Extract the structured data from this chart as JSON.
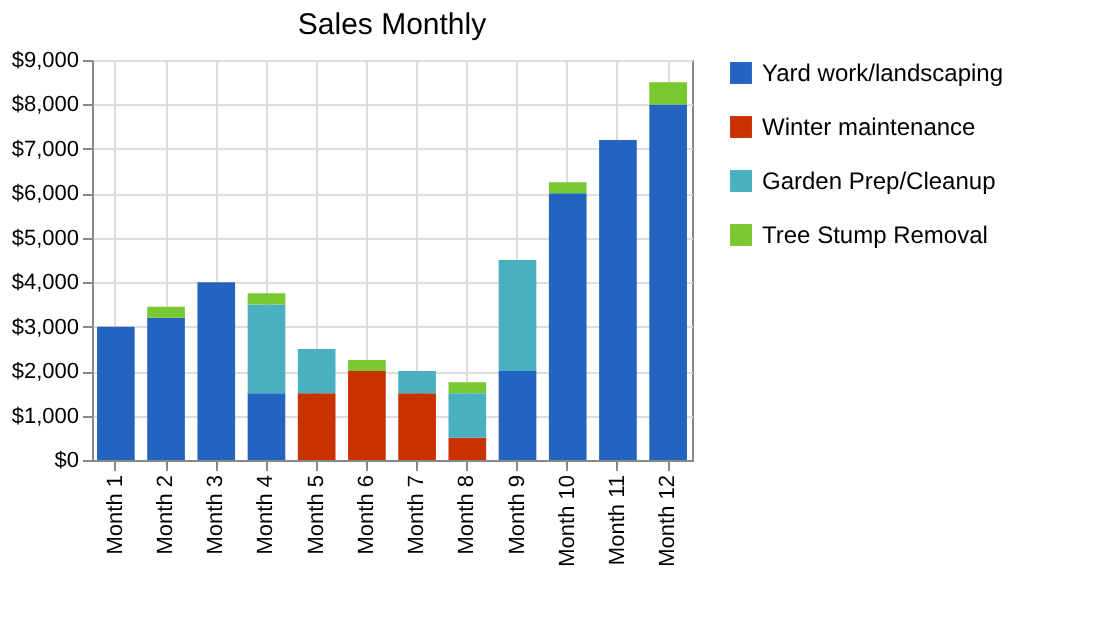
{
  "chart_data": {
    "type": "bar",
    "title": "Sales Monthly",
    "stacked": true,
    "categories": [
      "Month 1",
      "Month 2",
      "Month 3",
      "Month 4",
      "Month 5",
      "Month 6",
      "Month 7",
      "Month 8",
      "Month 9",
      "Month 10",
      "Month 11",
      "Month 12"
    ],
    "series": [
      {
        "name": "Yard work/landscaping",
        "color": "#2563c0",
        "values": [
          3000,
          3200,
          4000,
          1500,
          0,
          0,
          0,
          0,
          2000,
          6000,
          7200,
          8000
        ]
      },
      {
        "name": "Winter maintenance",
        "color": "#c83200",
        "values": [
          0,
          0,
          0,
          0,
          1500,
          2000,
          1500,
          500,
          0,
          0,
          0,
          0
        ]
      },
      {
        "name": "Garden Prep/Cleanup",
        "color": "#48b0c0",
        "values": [
          0,
          0,
          0,
          2000,
          1000,
          0,
          500,
          1000,
          2500,
          0,
          0,
          0
        ]
      },
      {
        "name": "Tree Stump Removal",
        "color": "#78c832",
        "values": [
          0,
          250,
          0,
          250,
          0,
          250,
          0,
          250,
          0,
          250,
          0,
          500
        ]
      }
    ],
    "ylim": [
      0,
      9000
    ],
    "yticks": [
      {
        "value": 0,
        "label": "$0"
      },
      {
        "value": 1000,
        "label": "$1,000"
      },
      {
        "value": 2000,
        "label": "$2,000"
      },
      {
        "value": 3000,
        "label": "$3,000"
      },
      {
        "value": 4000,
        "label": "$4,000"
      },
      {
        "value": 5000,
        "label": "$5,000"
      },
      {
        "value": 6000,
        "label": "$6,000"
      },
      {
        "value": 7000,
        "label": "$7,000"
      },
      {
        "value": 8000,
        "label": "$8,000"
      },
      {
        "value": 9000,
        "label": "$9,000"
      }
    ],
    "grid": true,
    "legend": "right"
  }
}
